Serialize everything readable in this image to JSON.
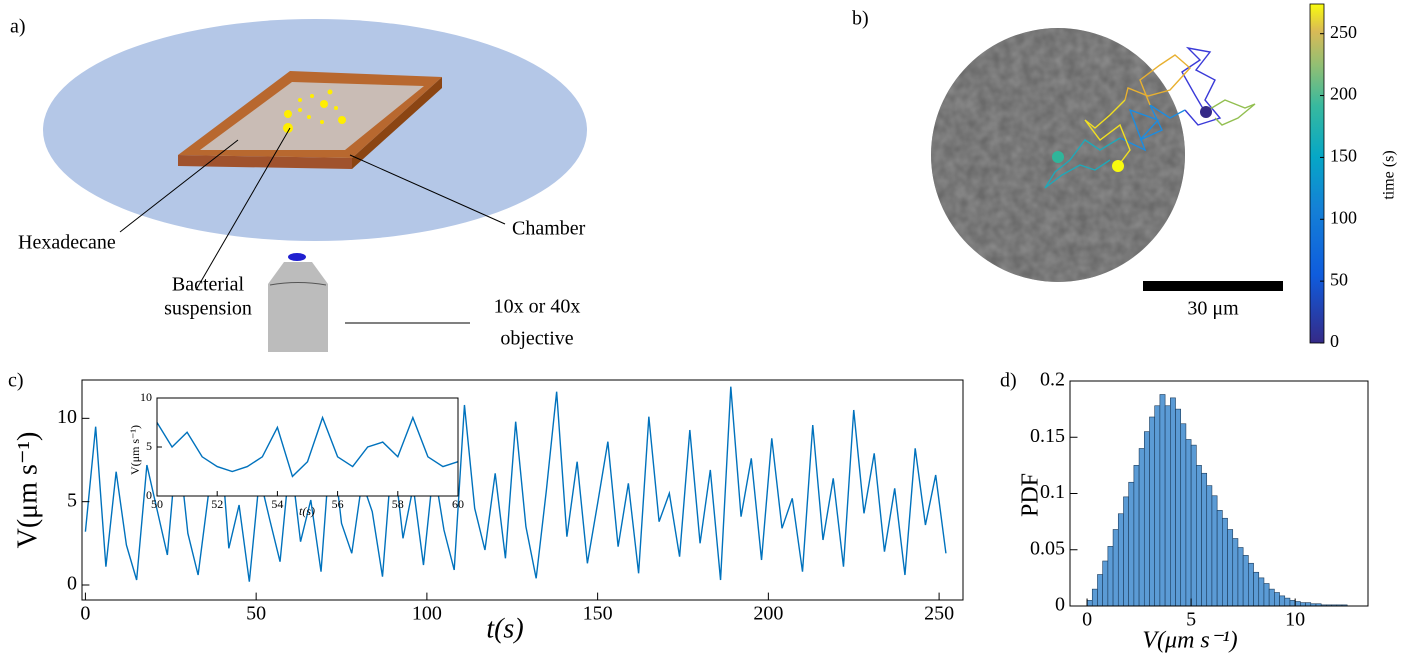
{
  "panel_labels": [
    "a)",
    "b)",
    "c)",
    "d)"
  ],
  "diagram": {
    "hexadecane": "Hexadecane",
    "chamber": "Chamber",
    "suspension": [
      "Bacterial",
      "suspension"
    ],
    "objective": [
      "10x or 40x",
      "objective"
    ]
  },
  "trajectory": {
    "scale_bar": "30 μm"
  },
  "chart_data": [
    {
      "type": "line",
      "xlabel": "t(s)",
      "ylabel": "V(μm s⁻¹)",
      "color": "#0072bd",
      "x": [
        0,
        3,
        6,
        9,
        12,
        15,
        18,
        21,
        24,
        27,
        30,
        33,
        36,
        39,
        42,
        45,
        48,
        51,
        54,
        57,
        60,
        63,
        66,
        69,
        72,
        75,
        78,
        81,
        84,
        87,
        90,
        93,
        96,
        99,
        102,
        105,
        108,
        111,
        114,
        117,
        120,
        123,
        126,
        129,
        132,
        135,
        138,
        141,
        144,
        147,
        150,
        153,
        156,
        159,
        162,
        165,
        168,
        171,
        174,
        177,
        180,
        183,
        186,
        189,
        192,
        195,
        198,
        201,
        204,
        207,
        210,
        213,
        216,
        219,
        222,
        225,
        228,
        231,
        234,
        237,
        240,
        243,
        246,
        249,
        252
      ],
      "values": [
        3.2,
        9.5,
        1.1,
        6.8,
        2.4,
        0.3,
        7.2,
        4.5,
        1.8,
        8.9,
        3.1,
        0.6,
        5.4,
        10.2,
        2.2,
        4.8,
        0.2,
        6.5,
        3.9,
        1.4,
        7.8,
        2.6,
        5.1,
        0.8,
        9.1,
        3.7,
        1.9,
        6.2,
        4.4,
        0.5,
        8.3,
        2.8,
        5.9,
        1.2,
        7.1,
        3.3,
        0.9,
        10.8,
        4.6,
        2.1,
        6.7,
        1.6,
        9.8,
        3.5,
        0.4,
        5.7,
        11.6,
        2.9,
        7.4,
        1.3,
        4.9,
        8.6,
        2.3,
        6.1,
        0.7,
        10.1,
        3.8,
        5.5,
        1.7,
        9.3,
        2.5,
        6.9,
        0.3,
        11.9,
        4.1,
        7.6,
        1.5,
        8.8,
        3.4,
        5.2,
        0.8,
        9.6,
        2.7,
        6.4,
        1.1,
        10.5,
        4.3,
        7.9,
        2.0,
        5.8,
        0.6,
        8.2,
        3.6,
        6.6,
        1.9
      ],
      "xlim": [
        -1,
        257
      ],
      "ylim": [
        -0.9,
        12.3
      ],
      "xticks": [
        0,
        50,
        100,
        150,
        200,
        250
      ],
      "yticks": [
        0,
        5,
        10
      ]
    },
    {
      "type": "line",
      "xlabel": "t(s)",
      "ylabel": "V(μm s⁻¹)",
      "color": "#0072bd",
      "x": [
        50,
        50.5,
        51,
        51.5,
        52,
        52.5,
        53,
        53.5,
        54,
        54.5,
        55,
        55.5,
        56,
        56.5,
        57,
        57.5,
        58,
        58.5,
        59,
        59.5,
        60
      ],
      "values": [
        7.5,
        5,
        6.5,
        4,
        3,
        2.5,
        3,
        4,
        7,
        2,
        3.5,
        8,
        4,
        3,
        5,
        5.5,
        4,
        8,
        4,
        3,
        3.5
      ],
      "xlim": [
        50,
        60
      ],
      "ylim": [
        0,
        10
      ],
      "xticks": [
        50,
        52,
        54,
        56,
        58,
        60
      ],
      "yticks": [
        0,
        5,
        10
      ]
    },
    {
      "type": "histogram",
      "xlabel": "V(μm s⁻¹)",
      "ylabel": "PDF",
      "color": "#5b9bd5",
      "bins": [
        0,
        0.25,
        0.5,
        0.75,
        1,
        1.25,
        1.5,
        1.75,
        2,
        2.25,
        2.5,
        2.75,
        3,
        3.25,
        3.5,
        3.75,
        4,
        4.25,
        4.5,
        4.75,
        5,
        5.25,
        5.5,
        5.75,
        6,
        6.25,
        6.5,
        6.75,
        7,
        7.25,
        7.5,
        7.75,
        8,
        8.25,
        8.5,
        8.75,
        9,
        9.25,
        9.5,
        9.75,
        10,
        10.25,
        10.5,
        10.75,
        11,
        11.25,
        11.5,
        11.75,
        12,
        12.25,
        12.5
      ],
      "values": [
        0.005,
        0.015,
        0.028,
        0.04,
        0.053,
        0.068,
        0.082,
        0.097,
        0.11,
        0.125,
        0.14,
        0.155,
        0.168,
        0.178,
        0.188,
        0.178,
        0.185,
        0.175,
        0.162,
        0.148,
        0.143,
        0.125,
        0.118,
        0.107,
        0.098,
        0.085,
        0.078,
        0.068,
        0.06,
        0.052,
        0.045,
        0.038,
        0.03,
        0.025,
        0.02,
        0.015,
        0.012,
        0.009,
        0.007,
        0.005,
        0.004,
        0.003,
        0.003,
        0.002,
        0.002,
        0.001,
        0.001,
        0.001,
        0.001,
        0.001
      ],
      "xlim": [
        -0.82,
        13.5
      ],
      "ylim": [
        0,
        0.2
      ],
      "xticks": [
        0,
        5,
        10
      ],
      "yticks": [
        0,
        0.05,
        0.1,
        0.15,
        0.2
      ]
    },
    {
      "type": "colorbar",
      "ylabel": "time (s)",
      "ylim": [
        0,
        274
      ],
      "yticks": [
        0,
        50,
        100,
        150,
        200,
        250
      ]
    }
  ]
}
